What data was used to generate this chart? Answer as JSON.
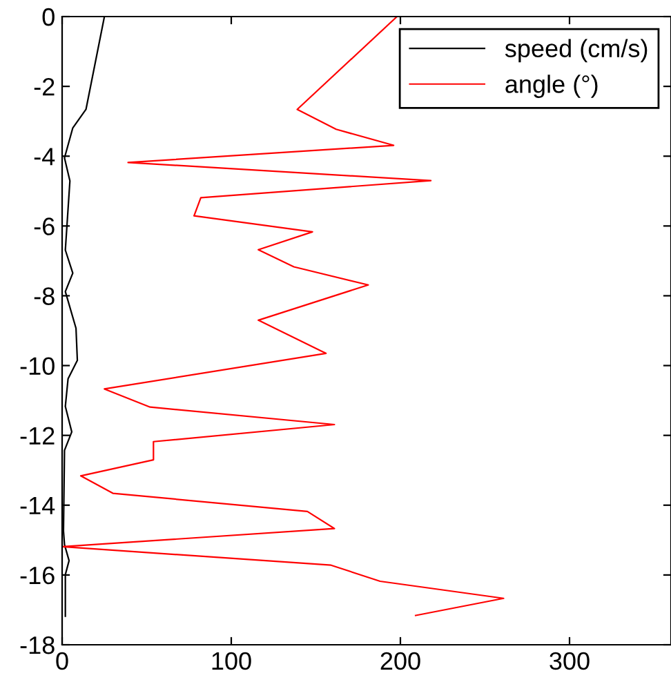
{
  "chart_data": {
    "type": "line",
    "xlim": [
      0,
      360
    ],
    "ylim": [
      -18,
      0
    ],
    "xticks": [
      0,
      100,
      200,
      300
    ],
    "yticks": [
      -18,
      -16,
      -14,
      -12,
      -10,
      -8,
      -6,
      -4,
      -2,
      0
    ],
    "grid": false,
    "legend": "top right",
    "marker": "none",
    "line_style": "solid",
    "series": [
      {
        "name": "speed (cm/s)",
        "color": "#000000",
        "x": [
          25,
          14.1,
          6.3,
          1.4,
          4.6,
          1.9,
          6.3,
          1.9,
          8.2,
          9,
          3.5,
          1.9,
          5.7,
          1.4,
          0.8,
          1.4,
          4.1,
          1.9,
          1.9
        ],
        "values": [
          0,
          -2.66,
          -3.19,
          -4.05,
          -4.71,
          -6.69,
          -7.35,
          -7.88,
          -8.93,
          -9.85,
          -10.38,
          -11.17,
          -11.9,
          -12.43,
          -14.74,
          -15.13,
          -15.59,
          -15.99,
          -17.18
        ]
      },
      {
        "name": "angle (°)",
        "color": "#ff0000",
        "x": [
          198,
          139,
          162,
          196,
          39,
          218,
          82,
          78,
          148,
          116,
          137,
          181,
          116,
          156,
          25,
          52,
          161,
          54,
          54,
          11,
          30,
          145,
          161,
          0,
          159,
          188,
          261,
          209
        ],
        "values": [
          0,
          -2.66,
          -3.23,
          -3.69,
          -4.18,
          -4.7,
          -5.19,
          -5.71,
          -6.17,
          -6.68,
          -7.17,
          -7.69,
          -8.7,
          -9.65,
          -10.67,
          -11.19,
          -11.69,
          -12.18,
          -12.7,
          -13.16,
          -13.66,
          -14.18,
          -14.67,
          -15.19,
          -15.72,
          -16.18,
          -16.67,
          -17.16
        ]
      }
    ]
  }
}
